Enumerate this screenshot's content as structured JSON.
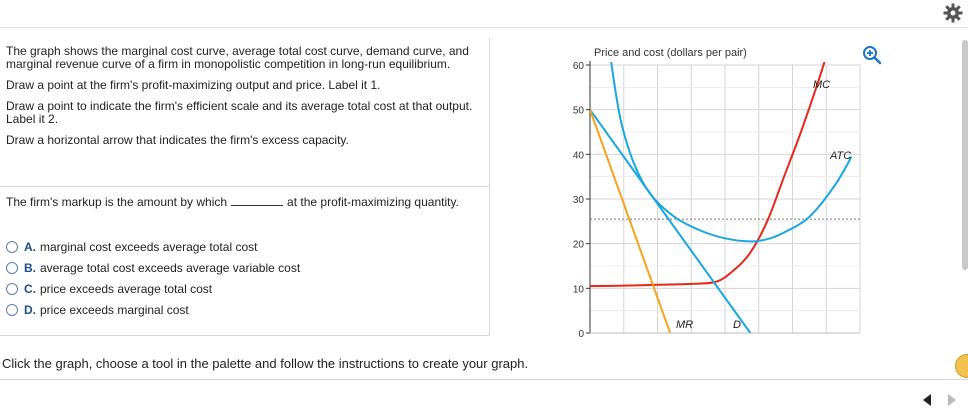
{
  "instructions": {
    "p1": "The graph shows the marginal cost curve, average total cost curve, demand curve, and marginal revenue curve of a firm in monopolistic competition in long-run equilibrium.",
    "p2": "Draw a point at the firm's profit-maximizing output and price. Label it 1.",
    "p3": "Draw a point to indicate the firm's efficient scale and its average total cost at that output. Label it 2.",
    "p4": "Draw a horizontal arrow that indicates the firm's excess capacity."
  },
  "question": {
    "before": "The firm's markup is the amount by which",
    "after": "at the profit-maximizing quantity."
  },
  "options": [
    {
      "letter": "A.",
      "text": "marginal cost exceeds average total cost"
    },
    {
      "letter": "B.",
      "text": "average total cost exceeds average variable cost"
    },
    {
      "letter": "C.",
      "text": "price exceeds average total cost"
    },
    {
      "letter": "D.",
      "text": "price exceeds marginal cost"
    }
  ],
  "click_note": "Click the graph, choose a tool in the palette and follow the instructions to create your graph.",
  "icons": {
    "settings": "gear-icon",
    "zoom": "zoom-in-icon",
    "help": "help-icon",
    "prev": "prev-arrow-icon",
    "next": "next-arrow-icon"
  },
  "chart_data": {
    "type": "line",
    "ylabel": "Price and cost (dollars per pair)",
    "xlabel": "",
    "ylim": [
      0,
      60
    ],
    "yticks": [
      0,
      10,
      20,
      30,
      40,
      50,
      60
    ],
    "grid": true,
    "series": [
      {
        "name": "MC",
        "color": "#e8261a",
        "points": [
          [
            0,
            10.5
          ],
          [
            2,
            10.6
          ],
          [
            4,
            10.8
          ],
          [
            6,
            11
          ],
          [
            7.5,
            11.5
          ],
          [
            8.5,
            14
          ],
          [
            9.5,
            18
          ],
          [
            10.5,
            25
          ],
          [
            11.5,
            35
          ],
          [
            12.5,
            45
          ],
          [
            13.5,
            56
          ],
          [
            14,
            62
          ]
        ]
      },
      {
        "name": "ATC",
        "color": "#1aa7e0",
        "points": [
          [
            1.2,
            62
          ],
          [
            1.8,
            48
          ],
          [
            2.6,
            38
          ],
          [
            3.6,
            31
          ],
          [
            5,
            26
          ],
          [
            6.5,
            23
          ],
          [
            8,
            21.2
          ],
          [
            9.5,
            20.5
          ],
          [
            10.5,
            21
          ],
          [
            11.5,
            22.5
          ],
          [
            13,
            26
          ],
          [
            14.5,
            33
          ],
          [
            15.5,
            39.5
          ]
        ]
      },
      {
        "name": "D",
        "color": "#1aa7e0",
        "points": [
          [
            0,
            50
          ],
          [
            9.5,
            0
          ]
        ]
      },
      {
        "name": "MR",
        "color": "#f5a31a",
        "points": [
          [
            0,
            50
          ],
          [
            4.75,
            0
          ]
        ]
      }
    ],
    "reference_line": {
      "y": 25.5,
      "style": "dotted"
    }
  }
}
